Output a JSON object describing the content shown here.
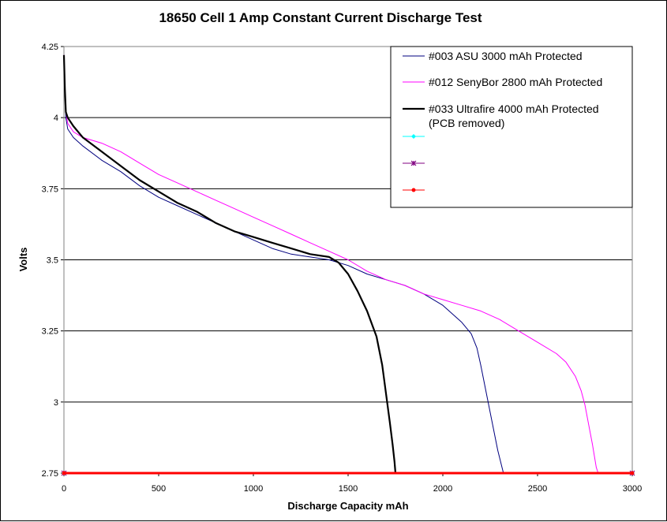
{
  "chart_data": {
    "type": "line",
    "title": "18650 Cell 1 Amp Constant Current Discharge Test",
    "xlabel": "Discharge Capacity mAh",
    "ylabel": "Volts",
    "xlim": [
      0,
      3000
    ],
    "ylim": [
      2.75,
      4.25
    ],
    "x_ticks": [
      0,
      500,
      1000,
      1500,
      2000,
      2500,
      3000
    ],
    "y_ticks": [
      2.75,
      3,
      3.25,
      3.5,
      3.75,
      4,
      4.25
    ],
    "x_tick_labels": [
      "0",
      "500",
      "1000",
      "1500",
      "2000",
      "2500",
      "3000"
    ],
    "y_tick_labels": [
      "2.75",
      "3",
      "3.25",
      "3.5",
      "3.75",
      "4",
      "4.25"
    ],
    "grid": "horizontal",
    "legend_position": "top-right",
    "series": [
      {
        "name": "#003 ASU 3000 mAh Protected",
        "color": "#00007f",
        "marker": "none",
        "x": [
          0,
          5,
          10,
          20,
          50,
          100,
          200,
          300,
          400,
          500,
          600,
          700,
          800,
          900,
          1000,
          1100,
          1200,
          1300,
          1400,
          1500,
          1600,
          1700,
          1800,
          1900,
          2000,
          2050,
          2100,
          2150,
          2180,
          2200,
          2230,
          2260,
          2290,
          2320
        ],
        "values": [
          4.22,
          4.1,
          4.0,
          3.96,
          3.93,
          3.9,
          3.85,
          3.81,
          3.76,
          3.72,
          3.69,
          3.66,
          3.63,
          3.6,
          3.57,
          3.54,
          3.52,
          3.51,
          3.5,
          3.48,
          3.45,
          3.43,
          3.41,
          3.38,
          3.34,
          3.31,
          3.28,
          3.24,
          3.19,
          3.13,
          3.03,
          2.93,
          2.83,
          2.75
        ]
      },
      {
        "name": "#012 SenyBor 2800 mAh Protected",
        "color": "#ff00ff",
        "marker": "none",
        "x": [
          0,
          5,
          10,
          20,
          50,
          100,
          200,
          300,
          400,
          500,
          600,
          700,
          800,
          900,
          1000,
          1100,
          1200,
          1300,
          1400,
          1500,
          1600,
          1700,
          1800,
          1900,
          2000,
          2100,
          2200,
          2300,
          2400,
          2500,
          2600,
          2650,
          2700,
          2730,
          2750,
          2770,
          2790,
          2810,
          2820
        ],
        "values": [
          4.22,
          4.1,
          4.02,
          3.98,
          3.95,
          3.93,
          3.91,
          3.88,
          3.84,
          3.8,
          3.77,
          3.74,
          3.71,
          3.68,
          3.65,
          3.62,
          3.59,
          3.56,
          3.53,
          3.5,
          3.46,
          3.43,
          3.41,
          3.38,
          3.36,
          3.34,
          3.32,
          3.29,
          3.25,
          3.21,
          3.17,
          3.14,
          3.09,
          3.04,
          2.99,
          2.92,
          2.85,
          2.77,
          2.75
        ]
      },
      {
        "name": "#033 Ultrafire 4000 mAh Protected (PCB removed)",
        "color": "#000000",
        "marker": "none",
        "x": [
          0,
          5,
          10,
          20,
          50,
          100,
          200,
          300,
          400,
          500,
          600,
          700,
          800,
          900,
          1000,
          1100,
          1200,
          1300,
          1400,
          1450,
          1500,
          1550,
          1600,
          1650,
          1680,
          1700,
          1720,
          1735,
          1745,
          1750
        ],
        "values": [
          4.22,
          4.1,
          4.02,
          4.0,
          3.97,
          3.93,
          3.88,
          3.83,
          3.78,
          3.74,
          3.7,
          3.67,
          3.63,
          3.6,
          3.58,
          3.56,
          3.54,
          3.52,
          3.51,
          3.49,
          3.45,
          3.39,
          3.32,
          3.23,
          3.13,
          3.03,
          2.93,
          2.85,
          2.79,
          2.75
        ]
      },
      {
        "name": "",
        "color": "#00ffff",
        "marker": "diamond",
        "x": [
          0,
          3000
        ],
        "values": [
          2.75,
          2.75
        ]
      },
      {
        "name": "",
        "color": "#800080",
        "marker": "star",
        "x": [
          0,
          3000
        ],
        "values": [
          2.75,
          2.75
        ]
      },
      {
        "name": "",
        "color": "#ff0000",
        "marker": "circle",
        "x": [
          0,
          3000
        ],
        "values": [
          2.75,
          2.75
        ]
      }
    ]
  }
}
